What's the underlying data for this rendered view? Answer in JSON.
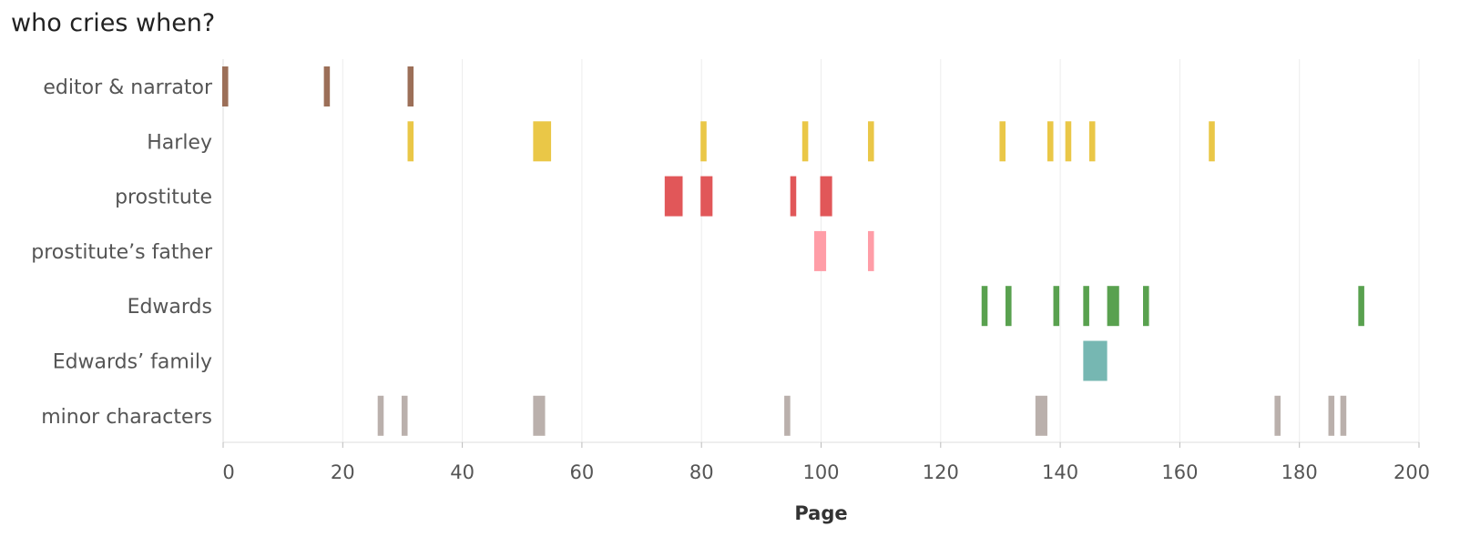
{
  "chart_data": {
    "type": "bar",
    "title": "who cries when?",
    "xlabel": "Page",
    "ylabel": "",
    "xlim": [
      0,
      200
    ],
    "x_ticks": [
      0,
      20,
      40,
      60,
      80,
      100,
      120,
      140,
      160,
      180,
      200
    ],
    "grid": true,
    "categories": [
      "editor & narrator",
      "Harley",
      "prostitute",
      "prostitute’s father",
      "Edwards",
      "Edwards’ family",
      "minor characters"
    ],
    "colors": {
      "editor & narrator": "#9c6f58",
      "Harley": "#eac747",
      "prostitute": "#e15759",
      "prostitute’s father": "#ff9da7",
      "Edwards": "#59a14f",
      "Edwards’ family": "#76b7b2",
      "minor characters": "#bab0ac"
    },
    "series": [
      {
        "name": "editor & narrator",
        "segments": [
          [
            0,
            1
          ],
          [
            17,
            18
          ],
          [
            31,
            32
          ]
        ]
      },
      {
        "name": "Harley",
        "segments": [
          [
            31,
            32
          ],
          [
            52,
            55
          ],
          [
            80,
            81
          ],
          [
            97,
            98
          ],
          [
            108,
            109
          ],
          [
            130,
            131
          ],
          [
            138,
            139
          ],
          [
            141,
            142
          ],
          [
            145,
            146
          ],
          [
            165,
            166
          ]
        ]
      },
      {
        "name": "prostitute",
        "segments": [
          [
            74,
            77
          ],
          [
            80,
            82
          ],
          [
            95,
            96
          ],
          [
            100,
            102
          ]
        ]
      },
      {
        "name": "prostitute’s father",
        "segments": [
          [
            99,
            101
          ],
          [
            108,
            109
          ]
        ]
      },
      {
        "name": "Edwards",
        "segments": [
          [
            127,
            128
          ],
          [
            131,
            132
          ],
          [
            139,
            140
          ],
          [
            144,
            145
          ],
          [
            148,
            150
          ],
          [
            154,
            155
          ],
          [
            190,
            191
          ]
        ]
      },
      {
        "name": "Edwards’ family",
        "segments": [
          [
            144,
            148
          ]
        ]
      },
      {
        "name": "minor characters",
        "segments": [
          [
            26,
            27
          ],
          [
            30,
            31
          ],
          [
            52,
            54
          ],
          [
            94,
            95
          ],
          [
            136,
            138
          ],
          [
            176,
            177
          ],
          [
            185,
            186
          ],
          [
            187,
            188
          ]
        ]
      }
    ]
  }
}
